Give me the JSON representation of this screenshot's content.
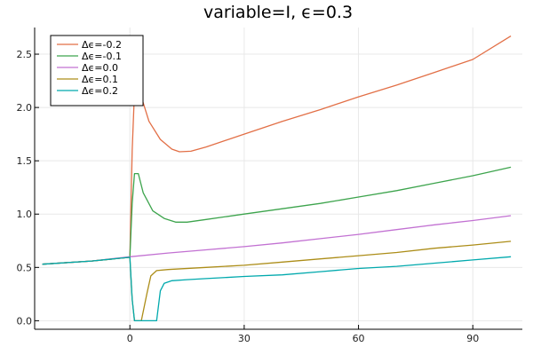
{
  "chart_data": {
    "type": "line",
    "title": "variable=I, ϵ=0.3",
    "xlabel": "",
    "ylabel": "",
    "xlim": [
      -25,
      103
    ],
    "ylim": [
      -0.08,
      2.75
    ],
    "xticks": [
      0,
      30,
      60,
      90
    ],
    "yticks": [
      0.0,
      0.5,
      1.0,
      1.5,
      2.0,
      2.5
    ],
    "xtick_labels": [
      "0",
      "30",
      "60",
      "90"
    ],
    "ytick_labels": [
      "0.0",
      "0.5",
      "1.0",
      "1.5",
      "2.0",
      "2.5"
    ],
    "grid": true,
    "legend_position": "top-left",
    "series": [
      {
        "name": "Δϵ=-0.2",
        "color": "#e26f46",
        "points": [
          [
            -23,
            0.53
          ],
          [
            -10,
            0.56
          ],
          [
            0,
            0.595
          ],
          [
            0.6,
            1.6
          ],
          [
            1.2,
            2.15
          ],
          [
            2,
            2.28
          ],
          [
            3,
            2.1
          ],
          [
            5,
            1.87
          ],
          [
            8,
            1.7
          ],
          [
            11,
            1.61
          ],
          [
            13,
            1.585
          ],
          [
            16,
            1.59
          ],
          [
            20,
            1.63
          ],
          [
            30,
            1.75
          ],
          [
            40,
            1.87
          ],
          [
            50,
            1.98
          ],
          [
            60,
            2.1
          ],
          [
            70,
            2.21
          ],
          [
            80,
            2.33
          ],
          [
            90,
            2.45
          ],
          [
            100,
            2.67
          ]
        ]
      },
      {
        "name": "Δϵ=-0.1",
        "color": "#3da44d",
        "points": [
          [
            -23,
            0.53
          ],
          [
            -10,
            0.56
          ],
          [
            0,
            0.595
          ],
          [
            0.6,
            1.1
          ],
          [
            1.2,
            1.38
          ],
          [
            2.2,
            1.38
          ],
          [
            3.5,
            1.2
          ],
          [
            6,
            1.03
          ],
          [
            9,
            0.96
          ],
          [
            12,
            0.925
          ],
          [
            15,
            0.925
          ],
          [
            20,
            0.95
          ],
          [
            30,
            1.0
          ],
          [
            40,
            1.05
          ],
          [
            50,
            1.1
          ],
          [
            60,
            1.16
          ],
          [
            70,
            1.22
          ],
          [
            80,
            1.29
          ],
          [
            90,
            1.36
          ],
          [
            100,
            1.44
          ]
        ]
      },
      {
        "name": "Δϵ=0.0",
        "color": "#c271d2",
        "points": [
          [
            -23,
            0.53
          ],
          [
            -10,
            0.56
          ],
          [
            0,
            0.6
          ],
          [
            10,
            0.635
          ],
          [
            20,
            0.665
          ],
          [
            30,
            0.695
          ],
          [
            40,
            0.73
          ],
          [
            50,
            0.77
          ],
          [
            60,
            0.81
          ],
          [
            70,
            0.855
          ],
          [
            80,
            0.9
          ],
          [
            90,
            0.94
          ],
          [
            100,
            0.985
          ]
        ]
      },
      {
        "name": "Δϵ=0.1",
        "color": "#ac8d18",
        "points": [
          [
            -23,
            0.53
          ],
          [
            -10,
            0.56
          ],
          [
            0,
            0.595
          ],
          [
            0.6,
            0.2
          ],
          [
            1.2,
            0.0
          ],
          [
            3,
            0.0
          ],
          [
            4.5,
            0.26
          ],
          [
            5.5,
            0.42
          ],
          [
            7,
            0.47
          ],
          [
            10,
            0.48
          ],
          [
            20,
            0.5
          ],
          [
            30,
            0.52
          ],
          [
            40,
            0.55
          ],
          [
            50,
            0.58
          ],
          [
            60,
            0.61
          ],
          [
            70,
            0.64
          ],
          [
            80,
            0.68
          ],
          [
            90,
            0.71
          ],
          [
            100,
            0.745
          ]
        ]
      },
      {
        "name": "Δϵ=0.2",
        "color": "#00a9ad",
        "points": [
          [
            -23,
            0.53
          ],
          [
            -10,
            0.56
          ],
          [
            0,
            0.595
          ],
          [
            0.6,
            0.2
          ],
          [
            1.2,
            0.0
          ],
          [
            7,
            0.0
          ],
          [
            8,
            0.28
          ],
          [
            9,
            0.35
          ],
          [
            11,
            0.375
          ],
          [
            15,
            0.385
          ],
          [
            20,
            0.395
          ],
          [
            30,
            0.415
          ],
          [
            40,
            0.43
          ],
          [
            50,
            0.46
          ],
          [
            60,
            0.49
          ],
          [
            70,
            0.51
          ],
          [
            80,
            0.54
          ],
          [
            90,
            0.57
          ],
          [
            100,
            0.6
          ]
        ]
      }
    ]
  }
}
